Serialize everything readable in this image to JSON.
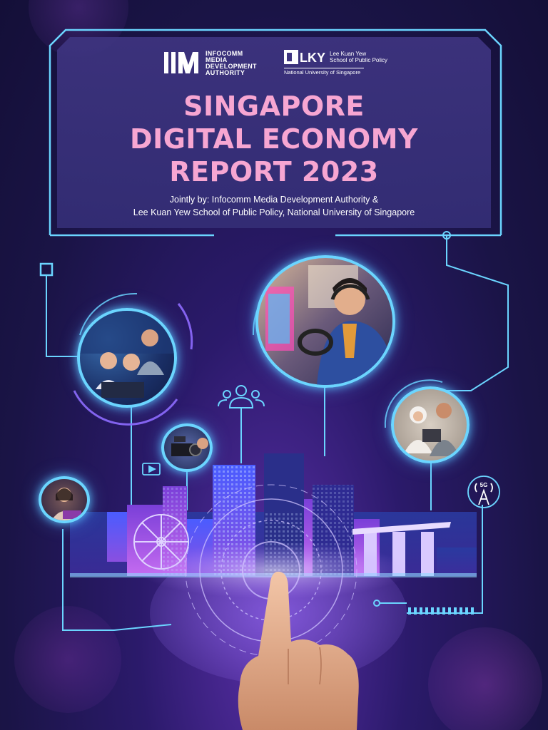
{
  "header": {
    "imda_logo": {
      "lines": [
        "INFOCOMM",
        "MEDIA",
        "DEVELOPMENT",
        "AUTHORITY"
      ]
    },
    "lky_logo": {
      "lines": [
        "Lee Kuan Yew",
        "School of Public Policy"
      ],
      "university": "National University of Singapore"
    },
    "title_lines": [
      "SINGAPORE",
      "DIGITAL ECONOMY",
      "REPORT 2023"
    ],
    "subtitle_lines": [
      "Jointly by: Infocomm Media Development Authority &",
      "Lee Kuan Yew School of Public Policy, National University of Singapore"
    ]
  },
  "icons": {
    "tower_label": "5G"
  },
  "colors": {
    "title_pink": "#f7a6d2",
    "circuit_cyan": "#6bd5ff",
    "panel_bg": "#3e3480",
    "background": "#1a1446"
  }
}
